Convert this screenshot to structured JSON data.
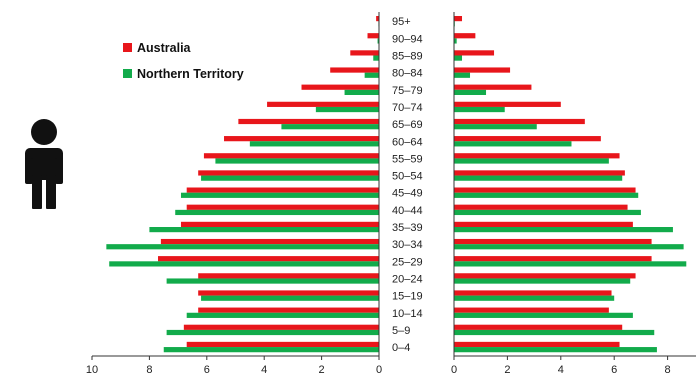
{
  "chart_data": {
    "type": "bar",
    "layout": "population-pyramid",
    "categories": [
      "0–4",
      "5–9",
      "10–14",
      "15–19",
      "20–24",
      "25–29",
      "30–34",
      "35–39",
      "40–44",
      "45–49",
      "50–54",
      "55–59",
      "60–64",
      "65–69",
      "70–74",
      "75–79",
      "80–84",
      "85–89",
      "90–94",
      "95+"
    ],
    "series": [
      {
        "name": "Australia",
        "color": "#e8161b",
        "left": [
          6.7,
          6.8,
          6.3,
          6.3,
          6.3,
          7.7,
          7.6,
          6.9,
          6.7,
          6.7,
          6.3,
          6.1,
          5.4,
          4.9,
          3.9,
          2.7,
          1.7,
          1.0,
          0.4,
          0.1
        ],
        "right": [
          6.2,
          6.3,
          5.8,
          5.9,
          6.8,
          7.4,
          7.4,
          6.7,
          6.5,
          6.8,
          6.4,
          6.2,
          5.5,
          4.9,
          4.0,
          2.9,
          2.1,
          1.5,
          0.8,
          0.3
        ]
      },
      {
        "name": "Northern Territory",
        "color": "#12ab4b",
        "left": [
          7.5,
          7.4,
          6.7,
          6.2,
          7.4,
          9.4,
          9.5,
          8.0,
          7.1,
          6.9,
          6.2,
          5.7,
          4.5,
          3.4,
          2.2,
          1.2,
          0.5,
          0.2,
          0.05,
          0.02
        ],
        "right": [
          7.6,
          7.5,
          6.7,
          6.0,
          6.6,
          8.7,
          8.6,
          8.2,
          7.0,
          6.9,
          6.3,
          5.8,
          4.4,
          3.1,
          1.9,
          1.2,
          0.6,
          0.3,
          0.1,
          0.03
        ]
      }
    ],
    "left_axis": {
      "ticks": [
        "10",
        "8",
        "6",
        "4",
        "2",
        "0"
      ],
      "range": [
        0,
        10
      ]
    },
    "right_axis": {
      "ticks": [
        "0",
        "2",
        "4",
        "6",
        "8"
      ],
      "range": [
        0,
        8.6
      ]
    },
    "legend": {
      "position": "top-left"
    },
    "male_icon": "person-icon",
    "grid": false
  }
}
